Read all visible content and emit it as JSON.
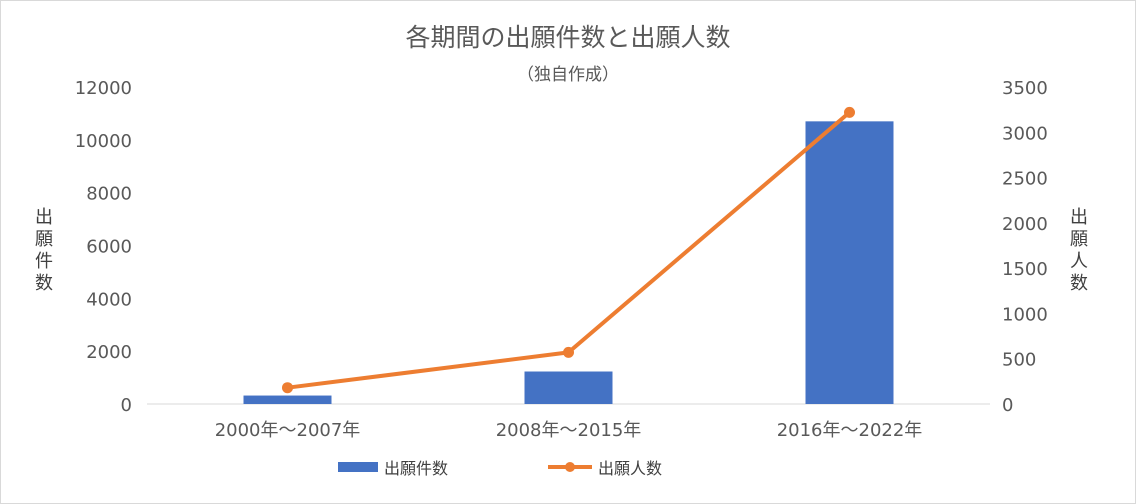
{
  "chart_data": {
    "type": "bar",
    "title": "各期間の出願件数と出願人数",
    "subtitle": "（独自作成）",
    "categories": [
      "2000年～2007年",
      "2008年～2015年",
      "2016年～2022年"
    ],
    "series": [
      {
        "name": "出願件数",
        "type": "bar",
        "axis": "left",
        "color": "#4472c4",
        "values": [
          320,
          1230,
          10700
        ]
      },
      {
        "name": "出願人数",
        "type": "line",
        "axis": "right",
        "color": "#ed7d31",
        "values": [
          180,
          570,
          3220
        ]
      }
    ],
    "ylabel": "出願件数",
    "y2label": "出願人数",
    "ylim": [
      0,
      12000
    ],
    "y2lim": [
      0,
      3500
    ],
    "yticks": [
      0,
      2000,
      4000,
      6000,
      8000,
      10000,
      12000
    ],
    "y2ticks": [
      0,
      500,
      1000,
      1500,
      2000,
      2500,
      3000,
      3500
    ],
    "grid": false,
    "legend_position": "bottom"
  }
}
